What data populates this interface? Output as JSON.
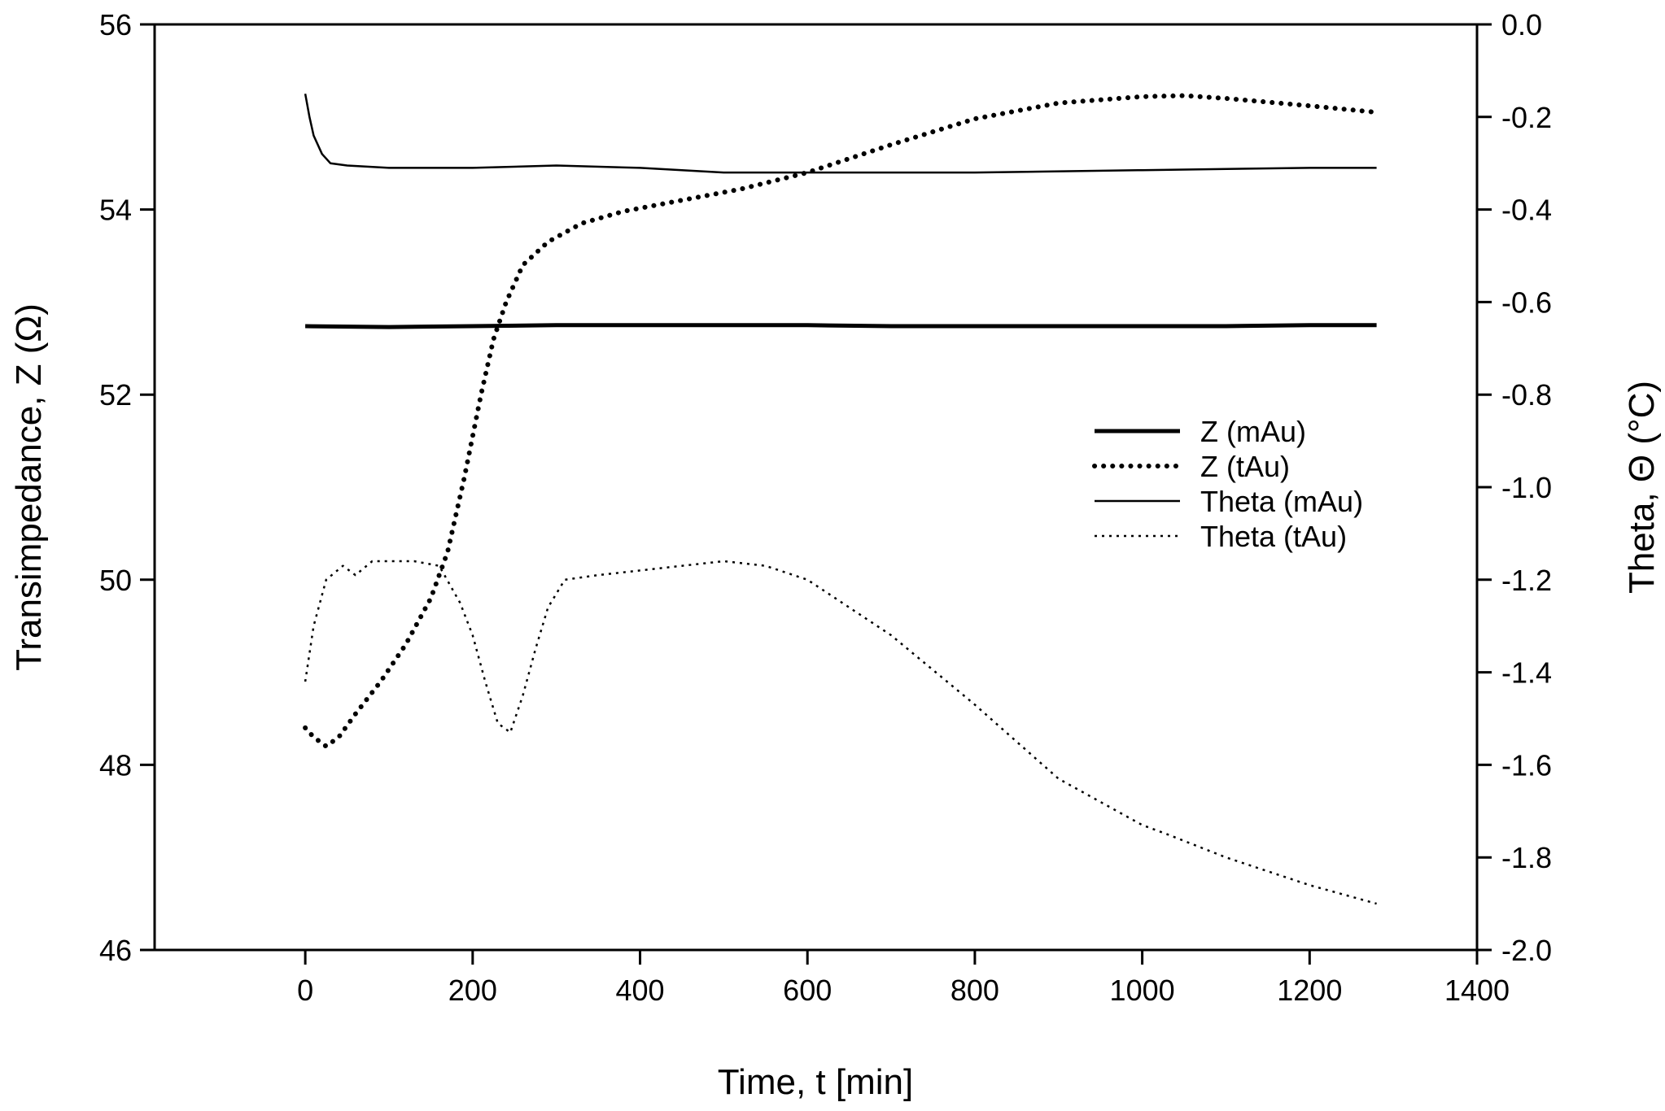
{
  "chart_data": {
    "type": "line",
    "xlabel": "Time, t  [min]",
    "ylabel_left": "Transimpedance, Z  (Ω)",
    "ylabel_right": "Theta, Θ (°C)",
    "xlim": [
      -180,
      1400
    ],
    "ylim_left": [
      46,
      56
    ],
    "ylim_right": [
      -2.0,
      0.0
    ],
    "x_ticks": [
      0,
      200,
      400,
      600,
      800,
      1000,
      1200,
      1400
    ],
    "x_tick_labels": [
      "0",
      "200",
      "400",
      "600",
      "800",
      "1000",
      "1200",
      "1400"
    ],
    "y_left_ticks": [
      46,
      48,
      50,
      52,
      54,
      56
    ],
    "y_left_tick_labels": [
      "46",
      "48",
      "50",
      "52",
      "54",
      "56"
    ],
    "y_right_ticks": [
      -2.0,
      -1.8,
      -1.6,
      -1.4,
      -1.2,
      -1.0,
      -0.8,
      -0.6,
      -0.4,
      -0.2,
      0.0
    ],
    "y_right_tick_labels": [
      "-2.0",
      "-1.8",
      "-1.6",
      "-1.4",
      "-1.2",
      "-1.0",
      "-0.8",
      "-0.6",
      "-0.4",
      "-0.2",
      "0.0"
    ],
    "legend_position": "center-right",
    "series": [
      {
        "name": "Z (mAu)",
        "axis": "left",
        "style": "thick-solid",
        "x": [
          0,
          100,
          200,
          300,
          400,
          500,
          600,
          700,
          800,
          900,
          1000,
          1100,
          1200,
          1280
        ],
        "y": [
          52.74,
          52.73,
          52.74,
          52.75,
          52.75,
          52.75,
          52.75,
          52.74,
          52.74,
          52.74,
          52.74,
          52.74,
          52.75,
          52.75
        ]
      },
      {
        "name": "Z (tAu)",
        "axis": "left",
        "style": "thick-dotted",
        "x": [
          0,
          10,
          25,
          40,
          60,
          90,
          120,
          150,
          170,
          190,
          210,
          225,
          240,
          260,
          290,
          330,
          380,
          450,
          520,
          600,
          700,
          800,
          900,
          1000,
          1050,
          1100,
          1200,
          1280
        ],
        "y": [
          48.4,
          48.3,
          48.2,
          48.3,
          48.55,
          48.9,
          49.3,
          49.8,
          50.3,
          51.1,
          52.0,
          52.6,
          53.0,
          53.4,
          53.65,
          53.85,
          53.98,
          54.1,
          54.22,
          54.4,
          54.7,
          54.98,
          55.15,
          55.22,
          55.23,
          55.2,
          55.12,
          55.05
        ]
      },
      {
        "name": "Theta (mAu)",
        "axis": "right",
        "style": "thin-solid",
        "x": [
          0,
          5,
          10,
          20,
          30,
          50,
          100,
          150,
          200,
          300,
          400,
          500,
          600,
          800,
          1000,
          1200,
          1280
        ],
        "y": [
          -0.15,
          -0.2,
          -0.24,
          -0.28,
          -0.3,
          -0.305,
          -0.31,
          -0.31,
          -0.31,
          -0.305,
          -0.31,
          -0.32,
          -0.32,
          -0.32,
          -0.315,
          -0.31,
          -0.31
        ]
      },
      {
        "name": "Theta (tAu)",
        "axis": "right",
        "style": "thin-dotted",
        "x": [
          0,
          10,
          25,
          45,
          60,
          80,
          100,
          130,
          160,
          185,
          200,
          215,
          230,
          245,
          260,
          275,
          290,
          310,
          350,
          400,
          450,
          500,
          550,
          600,
          700,
          800,
          900,
          1000,
          1030,
          1100,
          1200,
          1280
        ],
        "y": [
          -1.42,
          -1.3,
          -1.2,
          -1.17,
          -1.19,
          -1.16,
          -1.16,
          -1.16,
          -1.17,
          -1.25,
          -1.32,
          -1.42,
          -1.51,
          -1.53,
          -1.45,
          -1.35,
          -1.26,
          -1.2,
          -1.19,
          -1.18,
          -1.17,
          -1.16,
          -1.17,
          -1.2,
          -1.32,
          -1.47,
          -1.63,
          -1.73,
          -1.75,
          -1.8,
          -1.86,
          -1.9
        ]
      }
    ]
  }
}
